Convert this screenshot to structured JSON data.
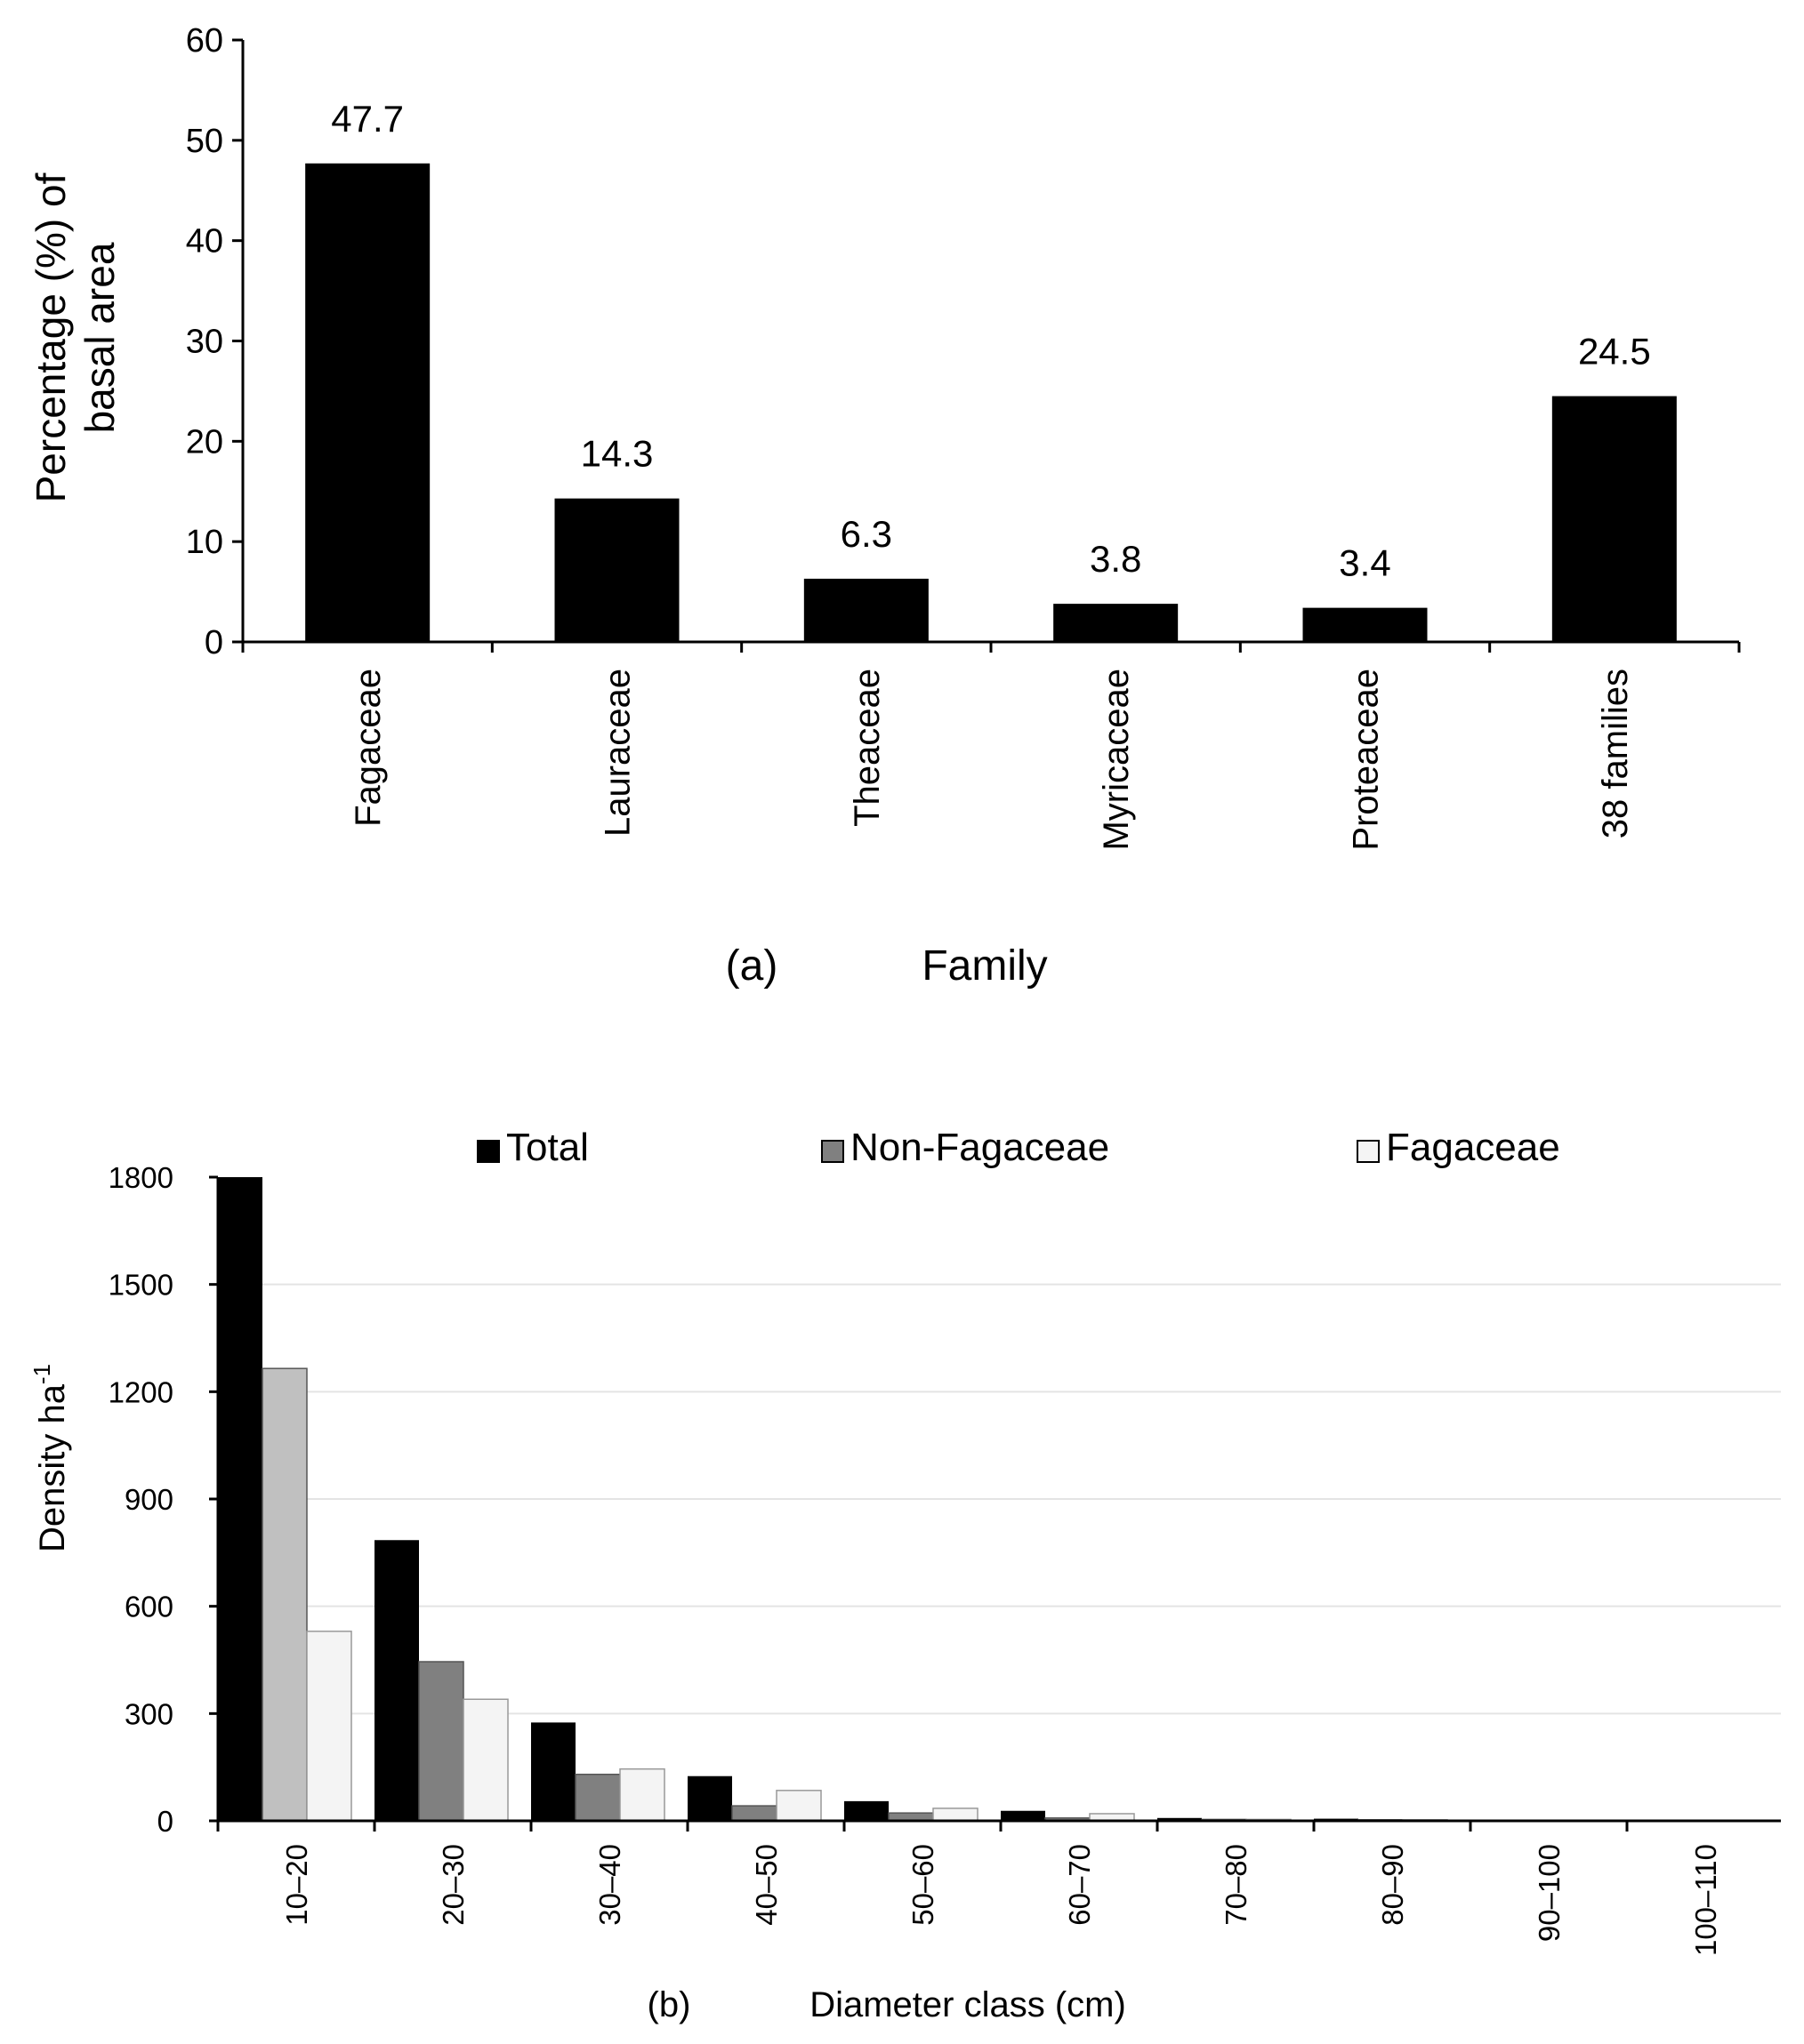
{
  "chart_data": [
    {
      "type": "bar",
      "panel_label": "(a)",
      "title": "",
      "xlabel": "Family",
      "ylabel_line1": "Percentage (%) of",
      "ylabel_line2": "basal area",
      "ylim": [
        0,
        60
      ],
      "yticks": [
        "0",
        "10",
        "20",
        "30",
        "40",
        "50",
        "60"
      ],
      "categories": [
        "Fagaceae",
        "Lauraceae",
        "Theaceae",
        "Myricaceae",
        "Proteaceae",
        "38 families"
      ],
      "values": [
        47.7,
        14.3,
        6.3,
        3.8,
        3.4,
        24.5
      ],
      "value_labels": [
        "47.7",
        "14.3",
        "6.3",
        "3.8",
        "3.4",
        "24.5"
      ],
      "bar_color": "#000000"
    },
    {
      "type": "bar",
      "panel_label": "(b)",
      "title": "",
      "xlabel": "Diameter class (cm)",
      "ylabel": "Density ha",
      "ylabel_sup": "-1",
      "ylim": [
        0,
        1800
      ],
      "yticks": [
        "0",
        "300",
        "600",
        "900",
        "1200",
        "1500",
        "1800"
      ],
      "grid": true,
      "legend_position": "top",
      "categories": [
        "10–20",
        "20–30",
        "30–40",
        "40–50",
        "50–60",
        "60–70",
        "70–80",
        "80–90",
        "90–100",
        "100–110"
      ],
      "series": [
        {
          "name": "Total",
          "color": "#000000",
          "values": [
            1800,
            785,
            275,
            125,
            55,
            28,
            8,
            6,
            2,
            1
          ]
        },
        {
          "name": "Non-Fagaceae",
          "color": "#808080",
          "values": [
            1265,
            445,
            130,
            42,
            22,
            8,
            4,
            3,
            1,
            1
          ]
        },
        {
          "name": "Fagaceae",
          "color": "#f4f4f4",
          "values": [
            530,
            340,
            145,
            85,
            35,
            20,
            4,
            3,
            1,
            1
          ]
        }
      ]
    }
  ]
}
